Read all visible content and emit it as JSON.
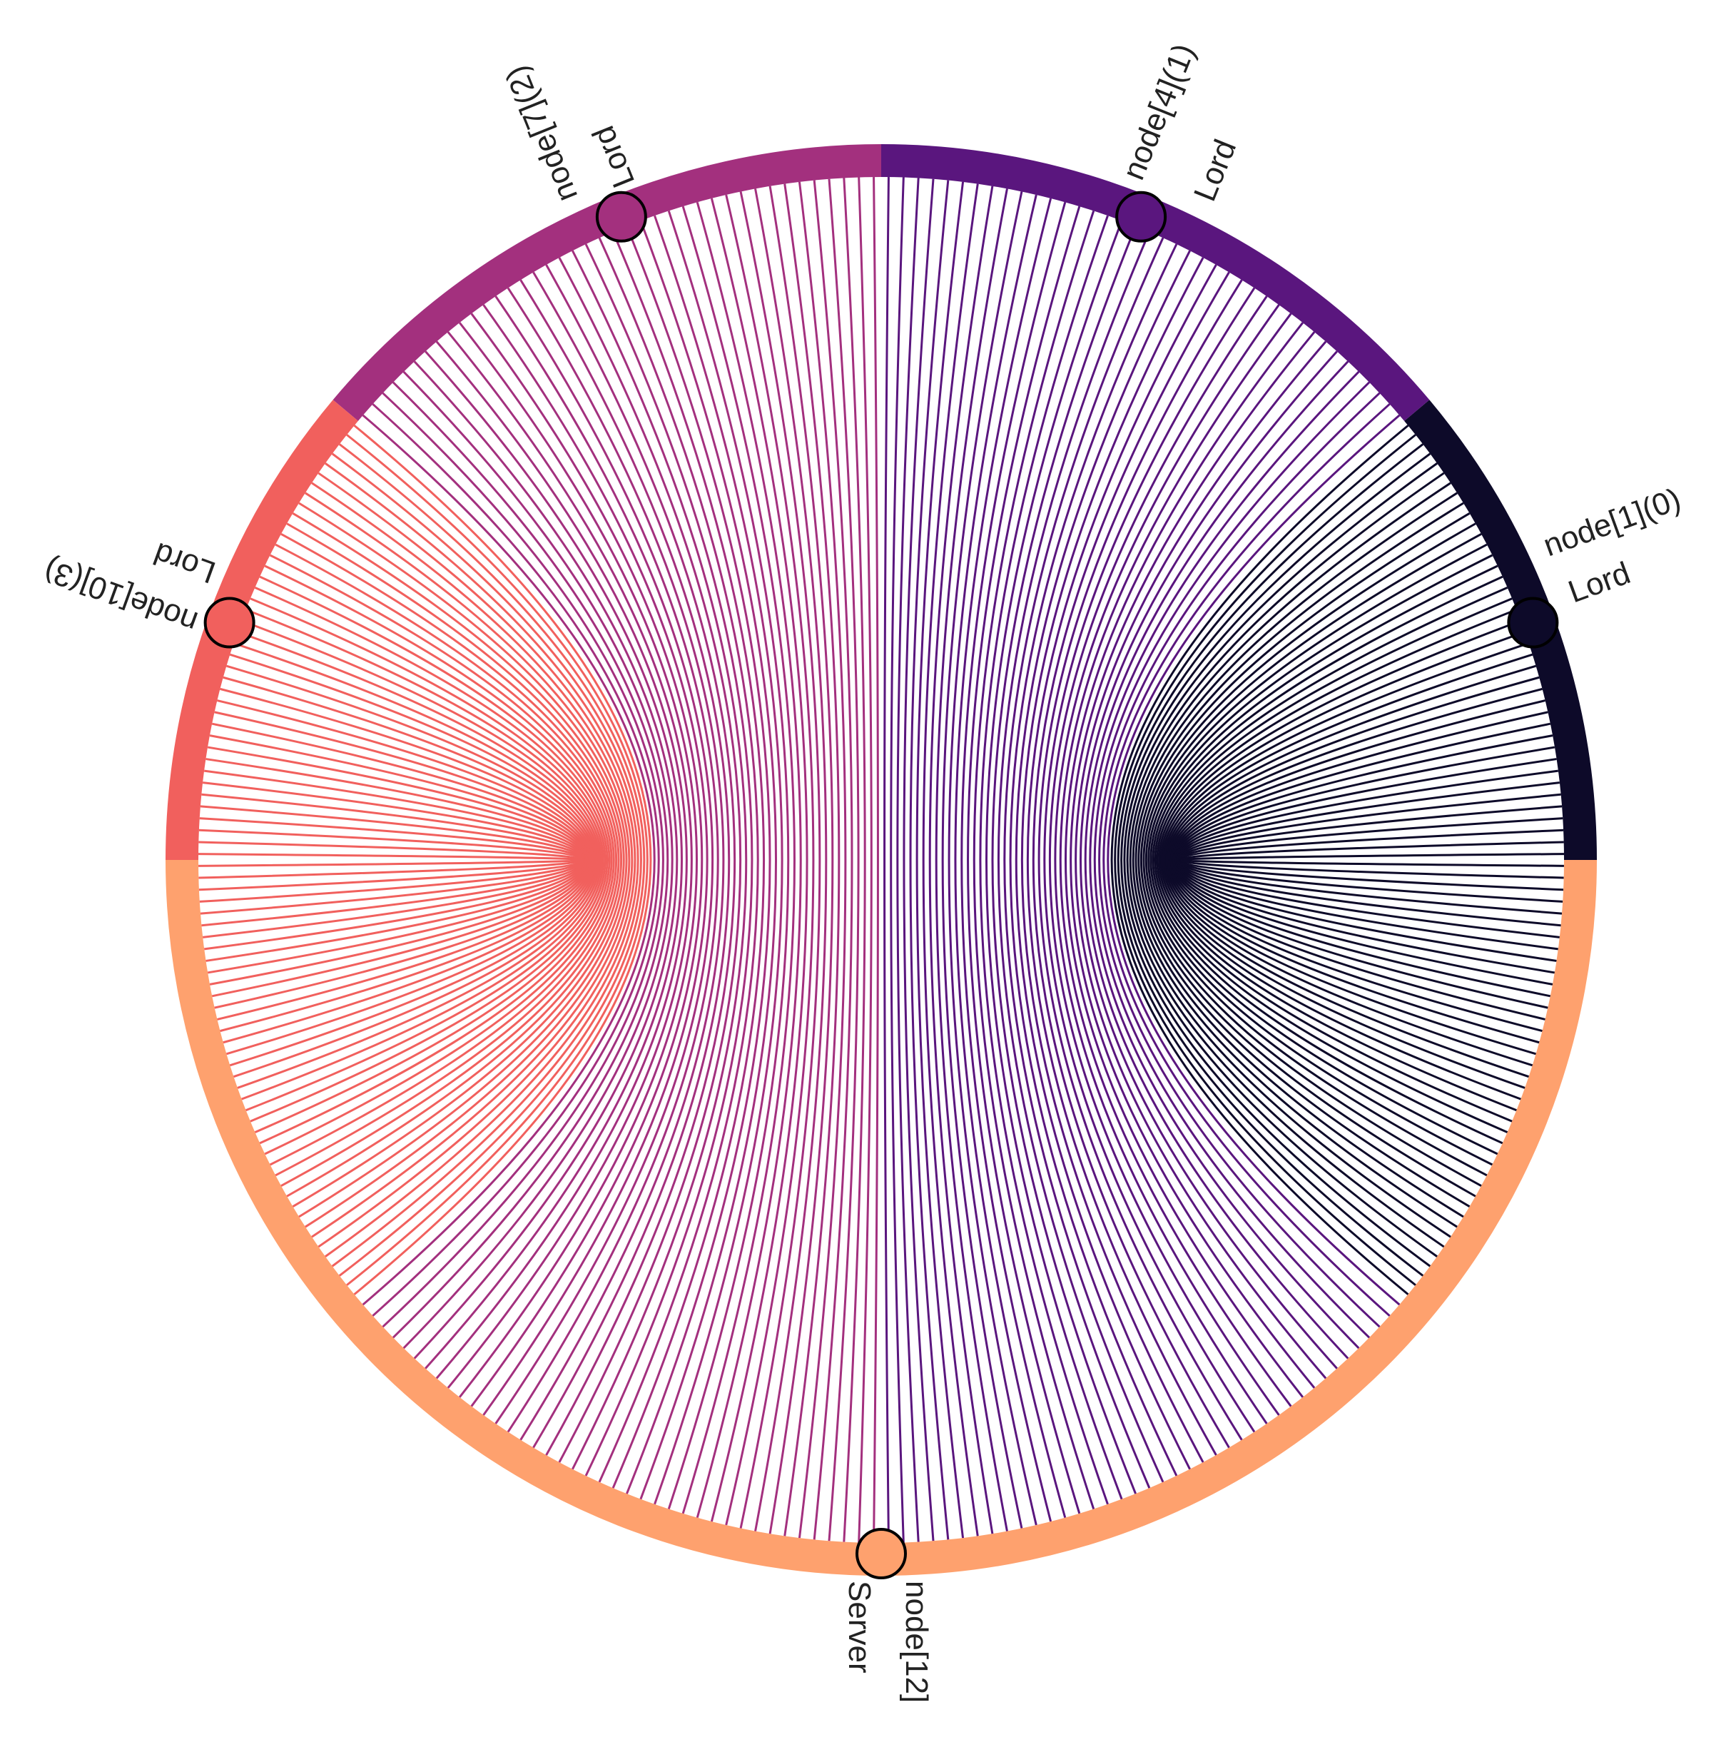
{
  "diagram": {
    "type": "chord-diagram",
    "link_count_per_group": 40,
    "groups": [
      {
        "name": "node[1](0)",
        "role": "Lord",
        "color": "#0d0a29",
        "arc_deg": [
          0,
          40
        ],
        "node_deg": 20
      },
      {
        "name": "node[4](1)",
        "role": "Lord",
        "color": "#5a167e",
        "arc_deg": [
          40,
          90
        ],
        "node_deg": 68
      },
      {
        "name": "node[7](2)",
        "role": "Lord",
        "color": "#a3307e",
        "arc_deg": [
          90,
          140
        ],
        "node_deg": 112
      },
      {
        "name": "node[10](3)",
        "role": "Lord",
        "color": "#f1605d",
        "arc_deg": [
          140,
          180
        ],
        "node_deg": 160
      },
      {
        "name": "node[12]",
        "role": "Server",
        "color": "#fea16e",
        "arc_deg": [
          180,
          360
        ],
        "node_deg": 270
      }
    ]
  }
}
